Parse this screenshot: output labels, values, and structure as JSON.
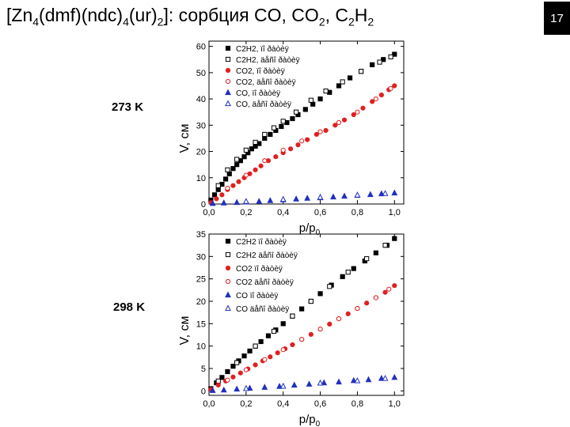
{
  "slide": {
    "title": {
      "prefix": "[Zn",
      "s1": "4",
      "mid1": "(dmf)(ndc)",
      "s2": "4",
      "mid2": "(ur)",
      "s3": "2",
      "mid3": "]: сорбция CO, CO",
      "s4": "2",
      "mid4": ", C",
      "s5": "2",
      "mid5": "H",
      "s6": "2"
    },
    "page_number": "17"
  },
  "chart_data": [
    {
      "type": "scatter",
      "annotation": "273 K",
      "ylabel": "V, см",
      "xlabel": "p/p",
      "xlabel_sub": "0",
      "xlim": [
        0,
        1.05
      ],
      "ylim": [
        0,
        62
      ],
      "xticks": [
        0.0,
        0.2,
        0.4,
        0.6,
        0.8,
        1.0
      ],
      "xtick_labels": [
        "0,0",
        "0,2",
        "0,4",
        "0,6",
        "0,8",
        "1,0"
      ],
      "yticks": [
        0,
        10,
        20,
        30,
        40,
        50,
        60
      ],
      "ytick_labels": [
        "0",
        "10",
        "20",
        "30",
        "40",
        "50",
        "60"
      ],
      "legend_position": "top-right",
      "series": [
        {
          "name": "C2H2, ïî ðàòèÿ",
          "marker": "square-filled",
          "color": "#000000",
          "x": [
            0.01,
            0.03,
            0.05,
            0.07,
            0.09,
            0.11,
            0.13,
            0.15,
            0.17,
            0.19,
            0.21,
            0.23,
            0.25,
            0.27,
            0.3,
            0.33,
            0.36,
            0.39,
            0.42,
            0.45,
            0.48,
            0.52,
            0.56,
            0.6,
            0.65,
            0.7,
            0.76,
            0.82,
            0.88,
            0.94,
            1.0
          ],
          "y": [
            1.5,
            3.5,
            5.5,
            7.5,
            9.5,
            11.5,
            13.5,
            15.0,
            16.5,
            18.0,
            19.5,
            21.0,
            22.0,
            23.0,
            25.0,
            26.5,
            28.0,
            29.5,
            31.0,
            32.5,
            34.0,
            36.0,
            38.0,
            40.0,
            42.5,
            45.0,
            48.0,
            50.5,
            53.0,
            55.0,
            57.0
          ]
        },
        {
          "name": "C2H2, äåñî ðàòèÿ",
          "marker": "square-open",
          "color": "#000000",
          "x": [
            0.05,
            0.1,
            0.15,
            0.2,
            0.25,
            0.3,
            0.35,
            0.4,
            0.47,
            0.55,
            0.63,
            0.72,
            0.82,
            0.92,
            0.98
          ],
          "y": [
            7.0,
            13.0,
            17.0,
            20.5,
            23.5,
            26.5,
            29.0,
            31.5,
            35.0,
            39.5,
            43.0,
            46.5,
            50.5,
            54.0,
            56.0
          ]
        },
        {
          "name": "CO2, ïî ðàòèÿ",
          "marker": "circle-filled",
          "color": "#e02020",
          "x": [
            0.01,
            0.04,
            0.07,
            0.1,
            0.13,
            0.16,
            0.19,
            0.22,
            0.25,
            0.28,
            0.32,
            0.36,
            0.4,
            0.44,
            0.48,
            0.53,
            0.58,
            0.63,
            0.68,
            0.73,
            0.78,
            0.83,
            0.88,
            0.93,
            0.97,
            1.0
          ],
          "y": [
            0.5,
            2.0,
            3.5,
            5.5,
            7.0,
            8.5,
            10.0,
            11.5,
            13.0,
            14.5,
            16.5,
            18.0,
            19.5,
            21.0,
            22.5,
            24.5,
            26.5,
            28.0,
            30.0,
            32.0,
            34.0,
            36.5,
            39.0,
            41.5,
            43.5,
            45.0
          ]
        },
        {
          "name": "CO2, äåñî ðàòèÿ",
          "marker": "circle-open",
          "color": "#e02020",
          "x": [
            0.1,
            0.2,
            0.3,
            0.4,
            0.5,
            0.6,
            0.7,
            0.8,
            0.9,
            0.98
          ],
          "y": [
            6.0,
            11.0,
            16.5,
            20.5,
            24.0,
            27.5,
            31.0,
            35.0,
            40.0,
            44.0
          ]
        },
        {
          "name": "CO, ïî ðàòèÿ",
          "marker": "triangle-filled",
          "color": "#2030c0",
          "x": [
            0.02,
            0.08,
            0.15,
            0.2,
            0.27,
            0.33,
            0.4,
            0.47,
            0.53,
            0.6,
            0.67,
            0.73,
            0.8,
            0.87,
            0.93,
            1.0
          ],
          "y": [
            0.2,
            0.4,
            0.6,
            0.8,
            1.0,
            1.3,
            1.6,
            1.9,
            2.2,
            2.4,
            2.7,
            3.0,
            3.3,
            3.6,
            3.9,
            4.2
          ]
        },
        {
          "name": "CO, äåñî ðàòèÿ",
          "marker": "triangle-open",
          "color": "#2030c0",
          "x": [
            0.2,
            0.4,
            0.6,
            0.8,
            0.95
          ],
          "y": [
            1.0,
            1.8,
            2.6,
            3.4,
            4.0
          ]
        }
      ]
    },
    {
      "type": "scatter",
      "annotation": "298 K",
      "ylabel": "V, см",
      "xlabel": "p/p",
      "xlabel_sub": "0",
      "xlim": [
        0,
        1.05
      ],
      "ylim": [
        -1,
        35
      ],
      "xticks": [
        0.0,
        0.2,
        0.4,
        0.6,
        0.8,
        1.0
      ],
      "xtick_labels": [
        "0,0",
        "0,2",
        "0,4",
        "0,6",
        "0,8",
        "1,0"
      ],
      "yticks": [
        0,
        5,
        10,
        15,
        20,
        25,
        30,
        35
      ],
      "ytick_labels": [
        "0",
        "5",
        "10",
        "15",
        "20",
        "25",
        "30",
        "35"
      ],
      "legend_position": "top-right",
      "series": [
        {
          "name": "C2H2 ïî ðàòèÿ",
          "marker": "square-filled",
          "color": "#000000",
          "x": [
            0.01,
            0.04,
            0.07,
            0.1,
            0.13,
            0.16,
            0.19,
            0.22,
            0.25,
            0.28,
            0.32,
            0.36,
            0.4,
            0.45,
            0.5,
            0.55,
            0.6,
            0.66,
            0.72,
            0.78,
            0.84,
            0.9,
            0.96,
            1.0
          ],
          "y": [
            0.5,
            1.8,
            3.0,
            4.3,
            5.5,
            6.7,
            7.8,
            8.9,
            10.0,
            11.0,
            12.3,
            13.6,
            15.0,
            16.7,
            18.3,
            20.0,
            21.7,
            23.6,
            25.5,
            27.3,
            29.0,
            30.8,
            32.5,
            34.0
          ]
        },
        {
          "name": "C2H2 äåñî ðàòèÿ",
          "marker": "square-open",
          "color": "#000000",
          "x": [
            0.05,
            0.15,
            0.25,
            0.35,
            0.45,
            0.55,
            0.65,
            0.75,
            0.85,
            0.95
          ],
          "y": [
            2.2,
            6.3,
            10.0,
            13.3,
            16.7,
            20.0,
            23.3,
            26.5,
            29.5,
            32.5
          ]
        },
        {
          "name": "CO2 ïî ðàòèÿ",
          "marker": "circle-filled",
          "color": "#e02020",
          "x": [
            0.01,
            0.05,
            0.09,
            0.13,
            0.17,
            0.21,
            0.25,
            0.29,
            0.33,
            0.37,
            0.41,
            0.45,
            0.5,
            0.55,
            0.6,
            0.65,
            0.7,
            0.75,
            0.8,
            0.85,
            0.9,
            0.95,
            1.0
          ],
          "y": [
            0.3,
            1.3,
            2.2,
            3.1,
            4.0,
            4.9,
            5.8,
            6.7,
            7.6,
            8.5,
            9.4,
            10.3,
            11.5,
            12.6,
            13.8,
            14.9,
            16.1,
            17.2,
            18.4,
            19.6,
            20.8,
            22.0,
            23.5
          ]
        },
        {
          "name": "CO2 äåñî ðàòèÿ",
          "marker": "circle-open",
          "color": "#e02020",
          "x": [
            0.1,
            0.2,
            0.3,
            0.4,
            0.5,
            0.6,
            0.7,
            0.8,
            0.9,
            0.97
          ],
          "y": [
            2.4,
            4.7,
            7.0,
            9.2,
            11.5,
            13.8,
            16.1,
            18.4,
            20.8,
            22.7
          ]
        },
        {
          "name": "CO ïî ðàòèÿ",
          "marker": "triangle-filled",
          "color": "#2030c0",
          "x": [
            0.02,
            0.08,
            0.15,
            0.22,
            0.3,
            0.38,
            0.46,
            0.54,
            0.62,
            0.7,
            0.78,
            0.86,
            0.93,
            1.0
          ],
          "y": [
            0.1,
            0.2,
            0.4,
            0.6,
            0.8,
            1.0,
            1.3,
            1.5,
            1.8,
            2.0,
            2.3,
            2.5,
            2.8,
            3.0
          ]
        },
        {
          "name": "CO äåñî ðàòèÿ",
          "marker": "triangle-open",
          "color": "#2030c0",
          "x": [
            0.2,
            0.4,
            0.6,
            0.8,
            0.95
          ],
          "y": [
            0.55,
            1.05,
            1.75,
            2.25,
            2.8
          ]
        }
      ]
    }
  ]
}
